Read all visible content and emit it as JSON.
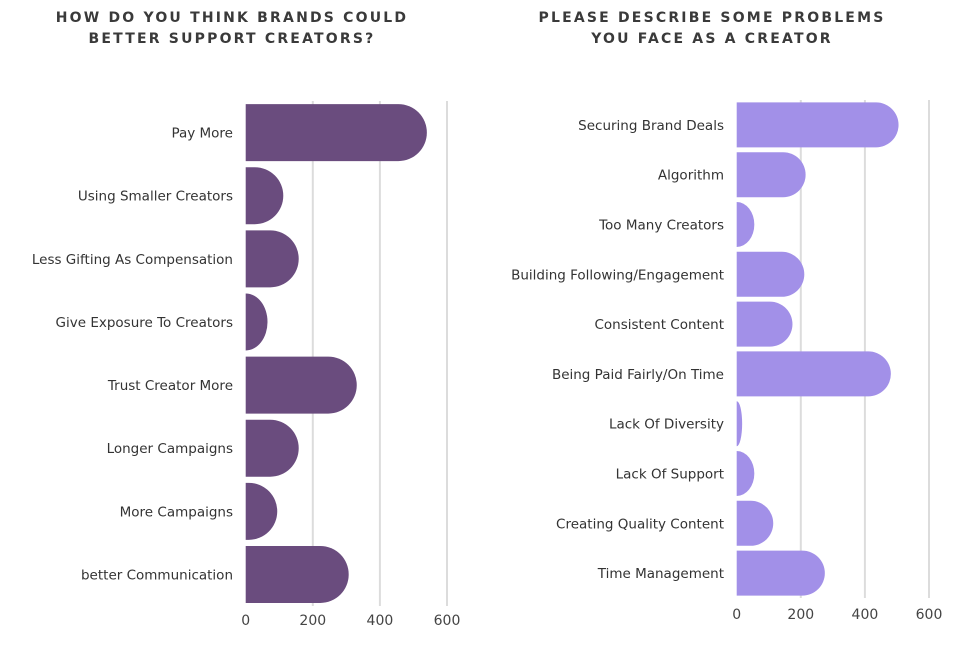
{
  "chart_data": [
    {
      "type": "bar",
      "orientation": "horizontal",
      "title": [
        "HOW DO YOU THINK BRANDS COULD",
        "BETTER SUPPORT CREATORS?"
      ],
      "categories": [
        "Pay More",
        "Using Smaller Creators",
        "Less Gifting As Compensation",
        "Give Exposure To Creators",
        "Trust Creator More",
        "Longer Campaigns",
        "More Campaigns",
        "better Communication"
      ],
      "values": [
        540,
        112,
        158,
        65,
        331,
        158,
        94,
        307
      ],
      "xlim": [
        0,
        600
      ],
      "xticks": [
        "0",
        "200",
        "400",
        "600"
      ],
      "xlabel": "",
      "ylabel": "",
      "grid": true,
      "color": "#6a4c7e"
    },
    {
      "type": "bar",
      "orientation": "horizontal",
      "title": [
        "PLEASE DESCRIBE SOME PROBLEMS",
        "YOU FACE AS A CREATOR"
      ],
      "categories": [
        "Securing Brand Deals",
        "Algorithm",
        "Too Many Creators",
        "Building Following/Engagement",
        "Consistent Content",
        "Being Paid Fairly/On Time",
        "Lack Of Diversity",
        "Lack Of Support",
        "Creating Quality Content",
        "Time Management"
      ],
      "values": [
        505,
        215,
        55,
        211,
        174,
        481,
        17,
        55,
        114,
        275
      ],
      "xlim": [
        0,
        600
      ],
      "xticks": [
        "0",
        "200",
        "400",
        "600"
      ],
      "xlabel": "",
      "ylabel": "",
      "grid": true,
      "color": "#a290e8"
    }
  ]
}
